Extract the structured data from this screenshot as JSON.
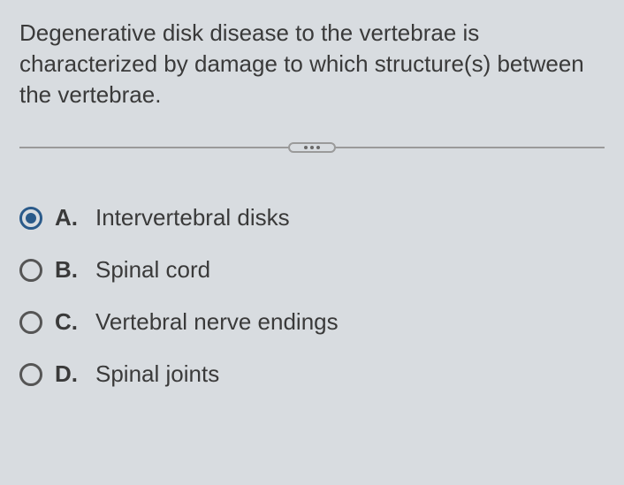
{
  "question": {
    "text": "Degenerative disk disease to the vertebrae is characterized by damage to which structure(s) between the vertebrae."
  },
  "options": [
    {
      "letter": "A.",
      "text": "Intervertebral disks",
      "selected": true
    },
    {
      "letter": "B.",
      "text": "Spinal cord",
      "selected": false
    },
    {
      "letter": "C.",
      "text": "Vertebral nerve endings",
      "selected": false
    },
    {
      "letter": "D.",
      "text": "Spinal joints",
      "selected": false
    }
  ],
  "colors": {
    "background": "#d8dce0",
    "text": "#3a3a3a",
    "radio_selected": "#2a5a8a",
    "radio_border": "#555555",
    "divider": "#9a9a9a"
  },
  "typography": {
    "font_family": "Arial, Helvetica, sans-serif",
    "question_fontsize": 26,
    "option_fontsize": 26,
    "option_letter_weight": "bold"
  }
}
